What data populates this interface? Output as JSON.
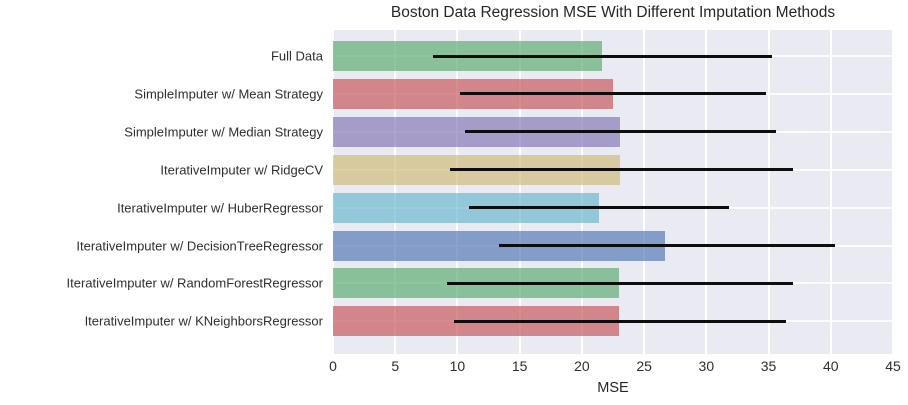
{
  "chart_data": {
    "type": "bar",
    "orientation": "horizontal",
    "title": "Boston Data Regression MSE With Different Imputation Methods",
    "xlabel": "MSE",
    "ylabel": "",
    "xlim": [
      0,
      45
    ],
    "xticks": [
      0,
      5,
      10,
      15,
      20,
      25,
      30,
      35,
      40,
      45
    ],
    "grid": true,
    "legend": "none",
    "categories": [
      "Full Data",
      "SimpleImputer w/ Mean Strategy",
      "SimpleImputer w/ Median Strategy",
      "IterativeImputer w/ RidgeCV",
      "IterativeImputer w/ HuberRegressor",
      "IterativeImputer w/ DecisionTreeRegressor",
      "IterativeImputer w/ RandomForestRegressor",
      "IterativeImputer w/ KNeighborsRegressor"
    ],
    "values": [
      21.6,
      22.5,
      23.1,
      23.1,
      21.4,
      26.7,
      23.0,
      23.0
    ],
    "error_low": [
      8.0,
      10.2,
      10.6,
      9.4,
      10.9,
      13.3,
      9.2,
      9.7
    ],
    "error_high": [
      35.3,
      34.8,
      35.6,
      37.0,
      31.8,
      40.3,
      37.0,
      36.4
    ],
    "bar_colors": [
      "rgba(85,168,104,0.65)",
      "rgba(196,78,82,0.65)",
      "rgba(129,114,178,0.65)",
      "rgba(204,185,116,0.65)",
      "rgba(100,181,205,0.65)",
      "rgba(76,114,176,0.65)",
      "rgba(85,168,104,0.65)",
      "rgba(196,78,82,0.65)"
    ],
    "palette": {
      "plot_background": "#eaeaf2",
      "gridline": "#ffffff",
      "error_bar": "#0d0d0d",
      "text": "#262626",
      "figure_background": "#ffffff"
    }
  }
}
